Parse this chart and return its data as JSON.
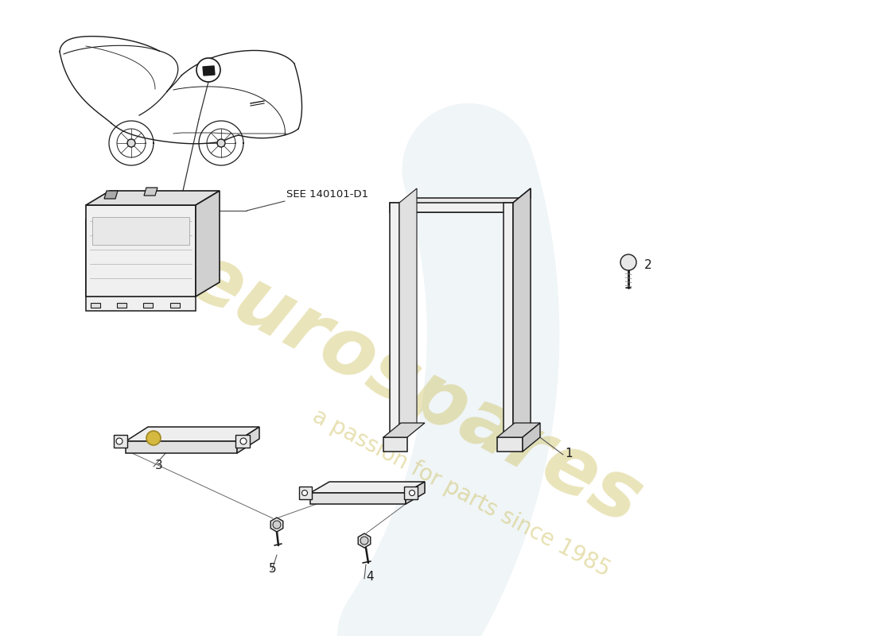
{
  "background_color": "#ffffff",
  "watermark_text1": "eurospares",
  "watermark_text2": "a passion for parts since 1985",
  "watermark_color": "#c8b84a",
  "watermark_alpha": 0.38,
  "see_label": "SEE 140101-D1",
  "line_color": "#1a1a1a",
  "fig_width": 11.0,
  "fig_height": 8.0,
  "swirl_color": "#b0c8d8",
  "swirl_alpha": 0.18
}
